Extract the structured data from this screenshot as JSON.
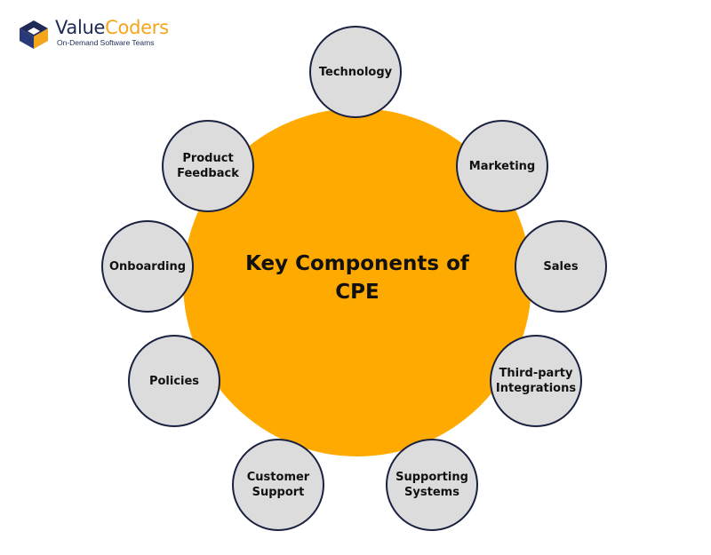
{
  "logo": {
    "name_part1": "Value",
    "name_part2": "Coders",
    "tagline": "On-Demand Software Teams"
  },
  "diagram": {
    "center_title": "Key Components of CPE",
    "components": [
      "Technology",
      "Marketing",
      "Sales",
      "Third-party Integrations",
      "Supporting Systems",
      "Customer Support",
      "Policies",
      "Onboarding",
      "Product Feedback"
    ]
  },
  "colors": {
    "hub": "#ffaa00",
    "node_fill": "#dcdcdd",
    "node_border": "#1b2140",
    "brand_navy": "#1f2a57",
    "brand_orange": "#f4a51c"
  }
}
